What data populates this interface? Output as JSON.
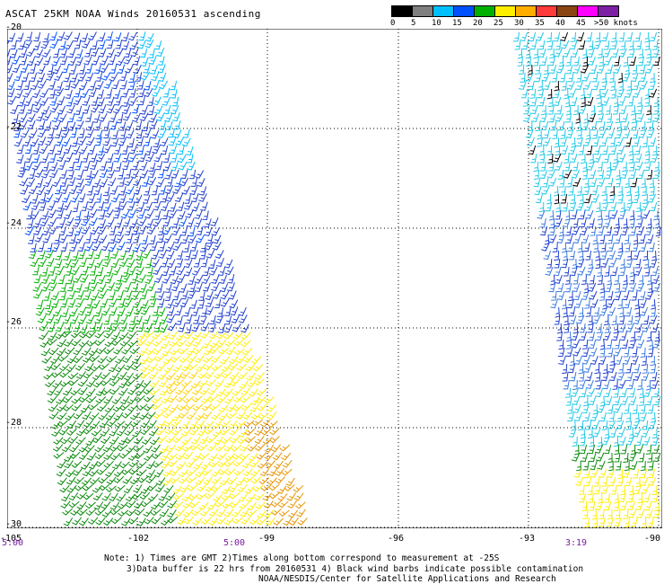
{
  "title": "ASCAT 25KM NOAA Winds 20160531 ascending",
  "legend": {
    "labels": [
      "0",
      "5",
      "10",
      "15",
      "20",
      "25",
      "30",
      "35",
      "40",
      "45",
      ">50 knots"
    ],
    "colors": [
      "#000000",
      "#7f7f7f",
      "#00bfff",
      "#0050ff",
      "#00b000",
      "#ffee00",
      "#ffae00",
      "#ff3a3a",
      "#8b4513",
      "#ff00ff",
      "#7d1fa5"
    ]
  },
  "map": {
    "lat_labels": [
      "-20",
      "-22",
      "-24",
      "-26",
      "-28",
      "-30"
    ],
    "lon_labels": [
      "-105",
      "-102",
      "-99",
      "-96",
      "-93",
      "-90"
    ],
    "time_labels": [
      "5:00",
      "5:00",
      "3:19"
    ]
  },
  "notes": {
    "line1": "Note: 1) Times are GMT 2)Times along bottom correspond to measurement at -25S",
    "line2": "3)Data buffer is 22 hrs from 20160531 4) Black wind barbs indicate possible contamination",
    "line3": "NOAA/NESDIS/Center for Satellite Applications and Research"
  }
}
